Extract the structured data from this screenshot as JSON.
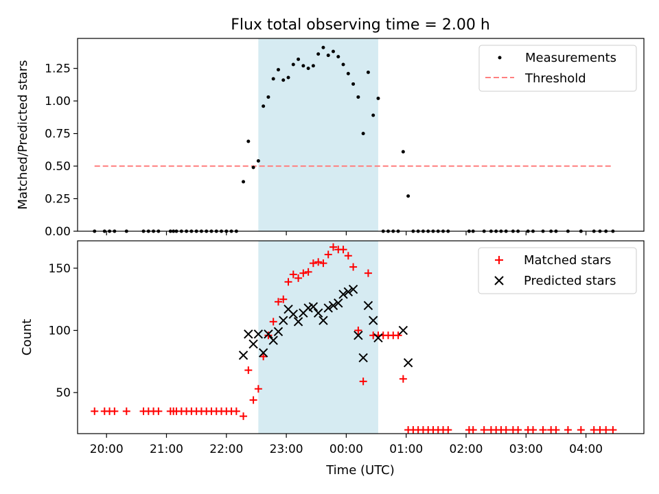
{
  "title": "Flux total observing time = 2.00 h",
  "xlabel": "Time (UTC)",
  "x_ticks": [
    "20:00",
    "21:00",
    "22:00",
    "23:00",
    "00:00",
    "01:00",
    "02:00",
    "03:00",
    "04:00"
  ],
  "colors": {
    "measurements": "#000000",
    "threshold": "#ff7f7f",
    "matched": "#ff0000",
    "predicted": "#000000",
    "shade": "#add8e6"
  },
  "chart_data": [
    {
      "type": "scatter",
      "ylabel": "Matched/Predicted stars",
      "x_range": [
        "19:31",
        "04:58"
      ],
      "ylim": [
        0,
        1.48
      ],
      "y_ticks": [
        "0.00",
        "0.25",
        "0.50",
        "0.75",
        "1.00",
        "1.25"
      ],
      "shaded_interval": [
        "22:32",
        "00:32"
      ],
      "legend_position": "upper right",
      "threshold": {
        "name": "Threshold",
        "value": 0.5,
        "x": [
          "19:48",
          "04:27"
        ]
      },
      "series": [
        {
          "name": "Measurements",
          "marker": "dot",
          "x": [
            "19:48",
            "19:58",
            "20:03",
            "20:08",
            "20:20",
            "20:37",
            "20:42",
            "20:47",
            "20:52",
            "21:04",
            "21:07",
            "21:10",
            "21:15",
            "21:20",
            "21:25",
            "21:30",
            "21:35",
            "21:40",
            "21:45",
            "21:50",
            "21:55",
            "22:00",
            "22:05",
            "22:10",
            "22:17",
            "22:22",
            "22:27",
            "22:32",
            "22:37",
            "22:42",
            "22:47",
            "22:52",
            "22:57",
            "23:02",
            "23:07",
            "23:12",
            "23:17",
            "23:22",
            "23:27",
            "23:32",
            "23:37",
            "23:42",
            "23:47",
            "23:52",
            "23:57",
            "00:02",
            "00:07",
            "00:12",
            "00:17",
            "00:22",
            "00:27",
            "00:32",
            "00:37",
            "00:42",
            "00:47",
            "00:52",
            "00:57",
            "01:02",
            "01:07",
            "01:12",
            "01:17",
            "01:22",
            "01:27",
            "01:32",
            "01:37",
            "01:42",
            "02:03",
            "02:07",
            "02:18",
            "02:25",
            "02:30",
            "02:35",
            "02:40",
            "02:47",
            "02:52",
            "03:02",
            "03:07",
            "03:17",
            "03:25",
            "03:30",
            "03:42",
            "03:55",
            "04:08",
            "04:14",
            "04:20",
            "04:27"
          ],
          "y": [
            0,
            0,
            0,
            0,
            0,
            0,
            0,
            0,
            0,
            0,
            0,
            0,
            0,
            0,
            0,
            0,
            0,
            0,
            0,
            0,
            0,
            0,
            0,
            0,
            0.38,
            0.69,
            0.49,
            0.54,
            0.96,
            1.03,
            1.17,
            1.24,
            1.16,
            1.18,
            1.28,
            1.32,
            1.27,
            1.25,
            1.27,
            1.36,
            1.41,
            1.35,
            1.38,
            1.34,
            1.28,
            1.21,
            1.13,
            1.03,
            0.75,
            1.22,
            0.89,
            1.02,
            0,
            0,
            0,
            0,
            0.61,
            0.27,
            0,
            0,
            0,
            0,
            0,
            0,
            0,
            0,
            0,
            0,
            0,
            0,
            0,
            0,
            0,
            0,
            0,
            0,
            0,
            0,
            0,
            0,
            0,
            0,
            0,
            0,
            0,
            0
          ]
        }
      ]
    },
    {
      "type": "scatter",
      "ylabel": "Count",
      "x_range": [
        "19:31",
        "04:58"
      ],
      "ylim": [
        17,
        172
      ],
      "y_ticks": [
        "50",
        "100",
        "150"
      ],
      "shaded_interval": [
        "22:32",
        "00:32"
      ],
      "legend_position": "upper right",
      "series": [
        {
          "name": "Matched stars",
          "marker": "plus",
          "x": [
            "19:48",
            "19:58",
            "20:03",
            "20:08",
            "20:20",
            "20:37",
            "20:42",
            "20:47",
            "20:52",
            "21:04",
            "21:07",
            "21:10",
            "21:15",
            "21:20",
            "21:25",
            "21:30",
            "21:35",
            "21:40",
            "21:45",
            "21:50",
            "21:55",
            "22:00",
            "22:05",
            "22:10",
            "22:17",
            "22:22",
            "22:27",
            "22:32",
            "22:37",
            "22:42",
            "22:47",
            "22:52",
            "22:57",
            "23:02",
            "23:07",
            "23:12",
            "23:17",
            "23:22",
            "23:27",
            "23:32",
            "23:37",
            "23:42",
            "23:47",
            "23:52",
            "23:57",
            "00:02",
            "00:07",
            "00:12",
            "00:17",
            "00:22",
            "00:27",
            "00:32",
            "00:37",
            "00:42",
            "00:47",
            "00:52",
            "00:57",
            "01:02",
            "01:07",
            "01:12",
            "01:17",
            "01:22",
            "01:27",
            "01:32",
            "01:37",
            "01:42",
            "02:03",
            "02:07",
            "02:18",
            "02:25",
            "02:30",
            "02:35",
            "02:40",
            "02:47",
            "02:52",
            "03:02",
            "03:07",
            "03:17",
            "03:25",
            "03:30",
            "03:42",
            "03:55",
            "04:08",
            "04:14",
            "04:20",
            "04:27"
          ],
          "y": [
            35,
            35,
            35,
            35,
            35,
            35,
            35,
            35,
            35,
            35,
            35,
            35,
            35,
            35,
            35,
            35,
            35,
            35,
            35,
            35,
            35,
            35,
            35,
            35,
            31,
            68,
            44,
            53,
            79,
            96,
            107,
            123,
            125,
            139,
            145,
            142,
            146,
            147,
            154,
            155,
            154,
            161,
            167,
            165,
            165,
            160,
            151,
            100,
            59,
            146,
            96,
            96,
            96,
            96,
            96,
            96,
            61,
            20,
            20,
            20,
            20,
            20,
            20,
            20,
            20,
            20,
            20,
            20,
            20,
            20,
            20,
            20,
            20,
            20,
            20,
            20,
            20,
            20,
            20,
            20,
            20,
            20,
            20,
            20,
            20,
            20
          ]
        },
        {
          "name": "Predicted stars",
          "marker": "x",
          "x": [
            "22:17",
            "22:22",
            "22:27",
            "22:32",
            "22:37",
            "22:42",
            "22:47",
            "22:52",
            "22:57",
            "23:02",
            "23:07",
            "23:12",
            "23:17",
            "23:22",
            "23:27",
            "23:32",
            "23:37",
            "23:42",
            "23:47",
            "23:52",
            "23:57",
            "00:02",
            "00:07",
            "00:12",
            "00:17",
            "00:22",
            "00:27",
            "00:32",
            "00:57",
            "01:02"
          ],
          "y": [
            80,
            97,
            89,
            97,
            82,
            97,
            92,
            99,
            108,
            117,
            113,
            107,
            114,
            118,
            119,
            114,
            108,
            118,
            120,
            122,
            129,
            131,
            133,
            96,
            78,
            120,
            108,
            94,
            100,
            74
          ]
        }
      ]
    }
  ]
}
